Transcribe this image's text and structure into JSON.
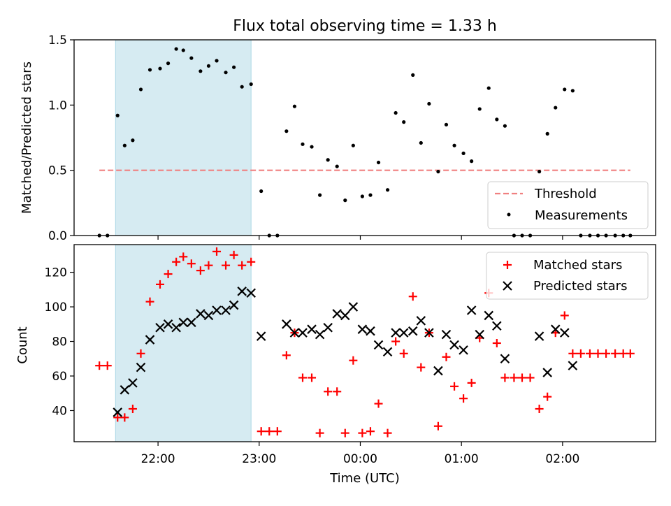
{
  "title": "Flux total observing time = 1.33 h",
  "xlabel": "Time (UTC)",
  "x_ticks": [
    "22:00",
    "23:00",
    "00:00",
    "01:00",
    "02:00"
  ],
  "x_tick_hours": [
    0,
    1,
    2,
    3,
    4
  ],
  "colors": {
    "threshold": "#f08080",
    "measurements": "#000000",
    "matched": "#ff0000",
    "predicted": "#000000",
    "span_fill": "#add8e6"
  },
  "chart_data": [
    {
      "type": "scatter",
      "panel": "top",
      "ylabel": "Matched/Predicted stars",
      "xlim_hours": [
        -0.83,
        4.92
      ],
      "ylim": [
        0,
        1.5
      ],
      "y_ticks": [
        "0.0",
        "0.5",
        "1.0",
        "1.5"
      ],
      "y_tick_values": [
        0,
        0.5,
        1.0,
        1.5
      ],
      "legend": [
        "Threshold",
        "Measurements"
      ],
      "legend_position": "lower right",
      "observing_span_hours": [
        -0.42,
        0.92
      ],
      "threshold": {
        "name": "Threshold",
        "y": 0.5,
        "x_range_hours": [
          -0.58,
          4.67
        ]
      },
      "series": [
        {
          "name": "Measurements",
          "x_hours": [
            -0.58,
            -0.5,
            -0.4,
            -0.33,
            -0.25,
            -0.17,
            -0.08,
            0.02,
            0.1,
            0.18,
            0.25,
            0.33,
            0.42,
            0.5,
            0.58,
            0.67,
            0.75,
            0.83,
            0.92,
            1.02,
            1.1,
            1.18,
            1.27,
            1.35,
            1.43,
            1.52,
            1.6,
            1.68,
            1.77,
            1.85,
            1.93,
            2.02,
            2.1,
            2.18,
            2.27,
            2.35,
            2.43,
            2.52,
            2.6,
            2.68,
            2.77,
            2.85,
            2.93,
            3.02,
            3.1,
            3.18,
            3.27,
            3.35,
            3.43,
            3.52,
            3.6,
            3.68,
            3.77,
            3.85,
            3.93,
            4.02,
            4.1,
            4.18,
            4.27,
            4.35,
            4.43,
            4.52,
            4.6,
            4.67
          ],
          "y": [
            0,
            0,
            0.92,
            0.69,
            0.73,
            1.12,
            1.27,
            1.28,
            1.32,
            1.43,
            1.42,
            1.36,
            1.26,
            1.3,
            1.34,
            1.25,
            1.29,
            1.14,
            1.16,
            0.34,
            0,
            0,
            0.8,
            0.99,
            0.7,
            0.68,
            0.31,
            0.58,
            0.53,
            0.27,
            0.69,
            0.3,
            0.31,
            0.56,
            0.35,
            0.94,
            0.87,
            1.23,
            0.71,
            1.01,
            0.49,
            0.85,
            0.69,
            0.63,
            0.57,
            0.97,
            1.13,
            0.89,
            0.84,
            0,
            0,
            0,
            0.49,
            0.78,
            0.98,
            1.12,
            1.11,
            0,
            0,
            0,
            0,
            0,
            0,
            0
          ]
        }
      ]
    },
    {
      "type": "scatter",
      "panel": "bottom",
      "ylabel": "Count",
      "xlabel": "Time (UTC)",
      "xlim_hours": [
        -0.83,
        4.92
      ],
      "ylim": [
        22,
        136
      ],
      "y_ticks": [
        "40",
        "60",
        "80",
        "100",
        "120"
      ],
      "y_tick_values": [
        40,
        60,
        80,
        100,
        120
      ],
      "legend": [
        "Matched stars",
        "Predicted stars"
      ],
      "legend_position": "upper right",
      "observing_span_hours": [
        -0.42,
        0.92
      ],
      "series": [
        {
          "name": "Matched stars",
          "marker": "+",
          "x_hours": [
            -0.58,
            -0.5,
            -0.4,
            -0.33,
            -0.25,
            -0.17,
            -0.08,
            0.02,
            0.1,
            0.18,
            0.25,
            0.33,
            0.42,
            0.5,
            0.58,
            0.67,
            0.75,
            0.83,
            0.92,
            1.02,
            1.1,
            1.18,
            1.27,
            1.35,
            1.43,
            1.52,
            1.6,
            1.68,
            1.77,
            1.85,
            1.93,
            2.02,
            2.1,
            2.18,
            2.27,
            2.35,
            2.43,
            2.52,
            2.6,
            2.68,
            2.77,
            2.85,
            2.93,
            3.02,
            3.1,
            3.18,
            3.27,
            3.35,
            3.43,
            3.52,
            3.6,
            3.68,
            3.77,
            3.85,
            3.93,
            4.02,
            4.1,
            4.18,
            4.27,
            4.35,
            4.43,
            4.52,
            4.6,
            4.67
          ],
          "y": [
            66,
            66,
            36,
            36,
            41,
            73,
            103,
            113,
            119,
            126,
            129,
            125,
            121,
            124,
            132,
            124,
            130,
            124,
            126,
            28,
            28,
            28,
            72,
            85,
            59,
            59,
            27,
            51,
            51,
            27,
            69,
            27,
            28,
            44,
            27,
            80,
            73,
            106,
            65,
            85,
            31,
            71,
            54,
            47,
            56,
            82,
            108,
            79,
            59,
            59,
            59,
            59,
            41,
            48,
            85,
            95,
            73,
            73,
            73,
            73,
            73,
            73,
            73,
            73
          ]
        },
        {
          "name": "Predicted stars",
          "marker": "x",
          "x_hours": [
            -0.4,
            -0.33,
            -0.25,
            -0.17,
            -0.08,
            0.02,
            0.1,
            0.18,
            0.25,
            0.33,
            0.42,
            0.5,
            0.58,
            0.67,
            0.75,
            0.83,
            0.92,
            1.02,
            1.27,
            1.35,
            1.43,
            1.52,
            1.6,
            1.68,
            1.77,
            1.85,
            1.93,
            2.02,
            2.1,
            2.18,
            2.27,
            2.35,
            2.43,
            2.52,
            2.6,
            2.68,
            2.77,
            2.85,
            2.93,
            3.02,
            3.1,
            3.18,
            3.27,
            3.35,
            3.43,
            3.77,
            3.85,
            3.93,
            4.02,
            4.1
          ],
          "y": [
            39,
            52,
            56,
            65,
            81,
            88,
            90,
            88,
            91,
            91,
            96,
            95,
            98,
            98,
            101,
            109,
            108,
            83,
            90,
            85,
            85,
            87,
            84,
            88,
            96,
            95,
            100,
            87,
            86,
            78,
            74,
            85,
            85,
            86,
            92,
            85,
            63,
            84,
            78,
            75,
            98,
            84,
            95,
            89,
            70,
            83,
            62,
            87,
            85,
            66
          ]
        }
      ]
    }
  ]
}
